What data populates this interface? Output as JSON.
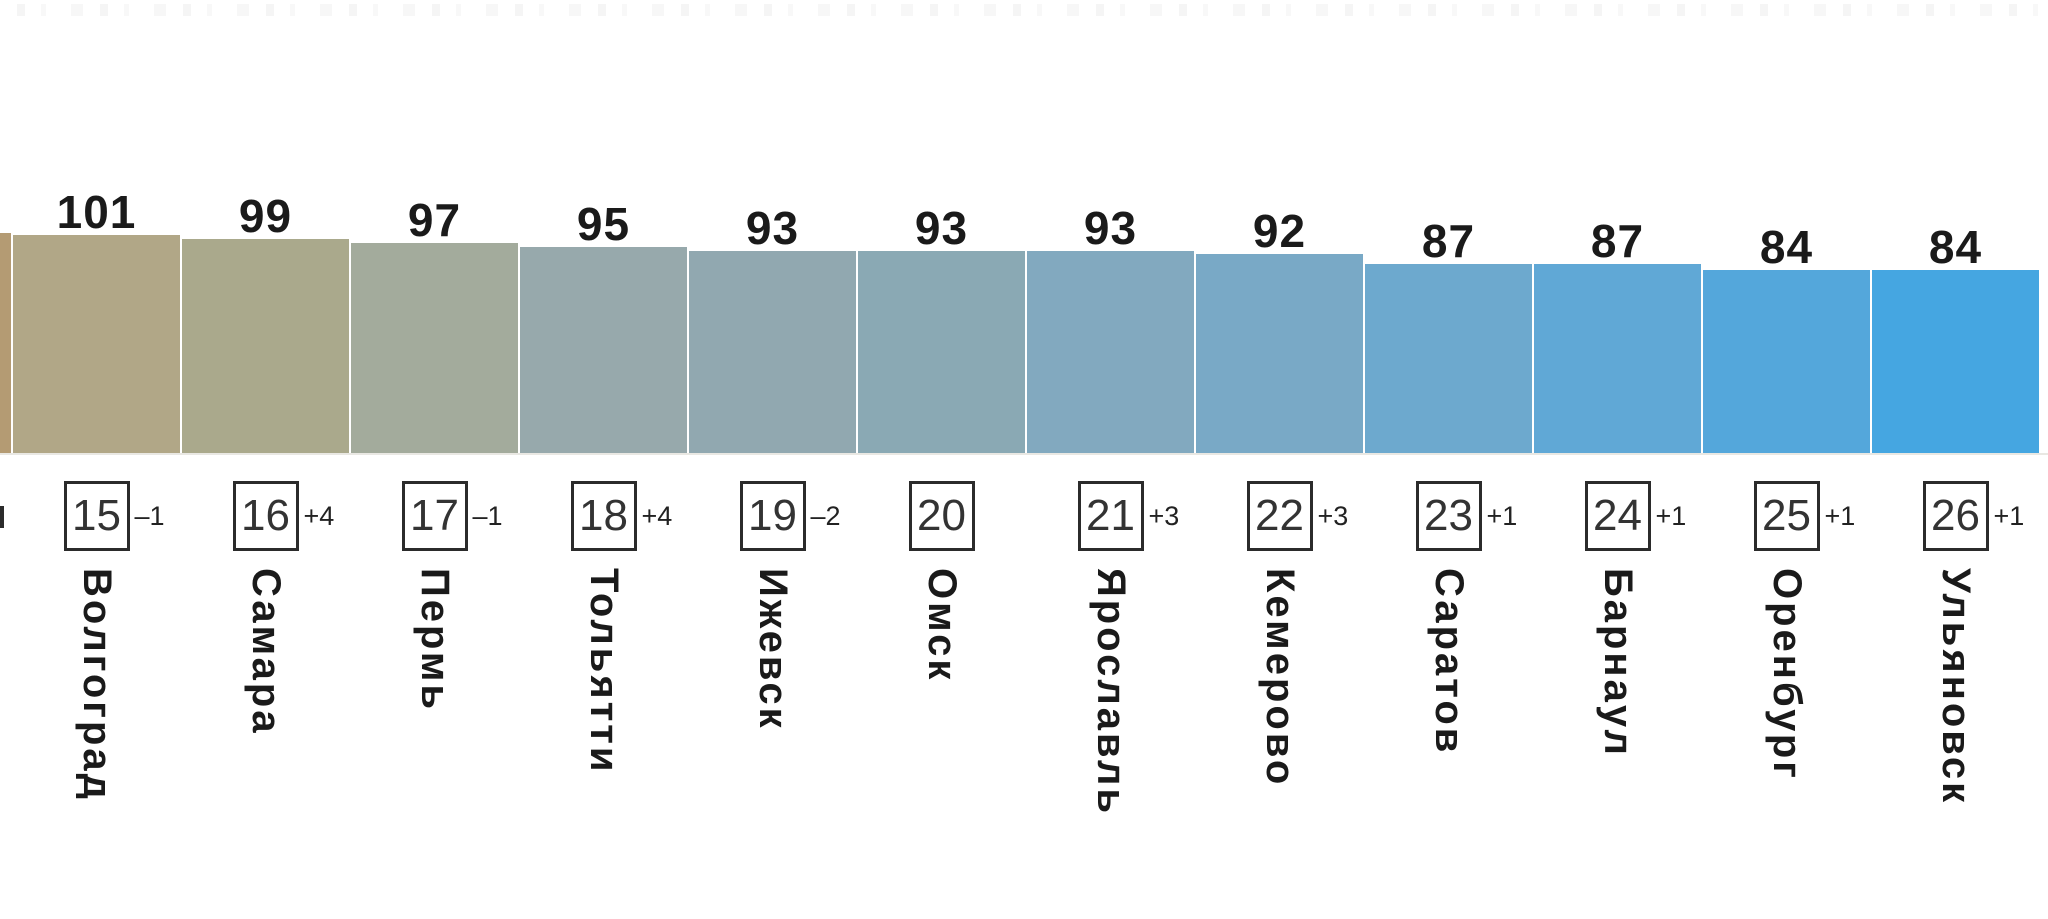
{
  "chart_data": {
    "type": "bar",
    "title": "",
    "categories": [
      "Волгоград",
      "Самара",
      "Пермь",
      "Тольятти",
      "Ижевск",
      "Омск",
      "Ярославль",
      "Кемерово",
      "Саратов",
      "Барнаул",
      "Оренбург",
      "Ульяновск"
    ],
    "values": [
      101,
      99,
      97,
      95,
      93,
      93,
      93,
      92,
      87,
      87,
      84,
      84
    ],
    "ranks": [
      "15",
      "16",
      "17",
      "18",
      "19",
      "20",
      "21",
      "22",
      "23",
      "24",
      "25",
      "26"
    ],
    "rank_changes": [
      "–1",
      "+4",
      "–1",
      "+4",
      "–2",
      "",
      "+3",
      "+3",
      "+1",
      "+1",
      "+1",
      "+1"
    ],
    "bar_colors": [
      "#b1a787",
      "#aaa98c",
      "#a3ab9c",
      "#97a9ac",
      "#91a8b0",
      "#8aa9b4",
      "#82a9bf",
      "#79a9c6",
      "#6da9ce",
      "#60a8d6",
      "#54a7db",
      "#45a6e1"
    ],
    "partial_bar_color": "#b49b73",
    "value_labels_position": "above-bars",
    "legend": null,
    "gridlines": false
  },
  "colors": {
    "background": "#ffffff",
    "value_label_text": "#1a1a1a",
    "rank_number_text": "#333333",
    "rank_box_border": "#2b2b2b",
    "rank_change_text": "#222222",
    "city_label_text": "#1a1a1a"
  }
}
